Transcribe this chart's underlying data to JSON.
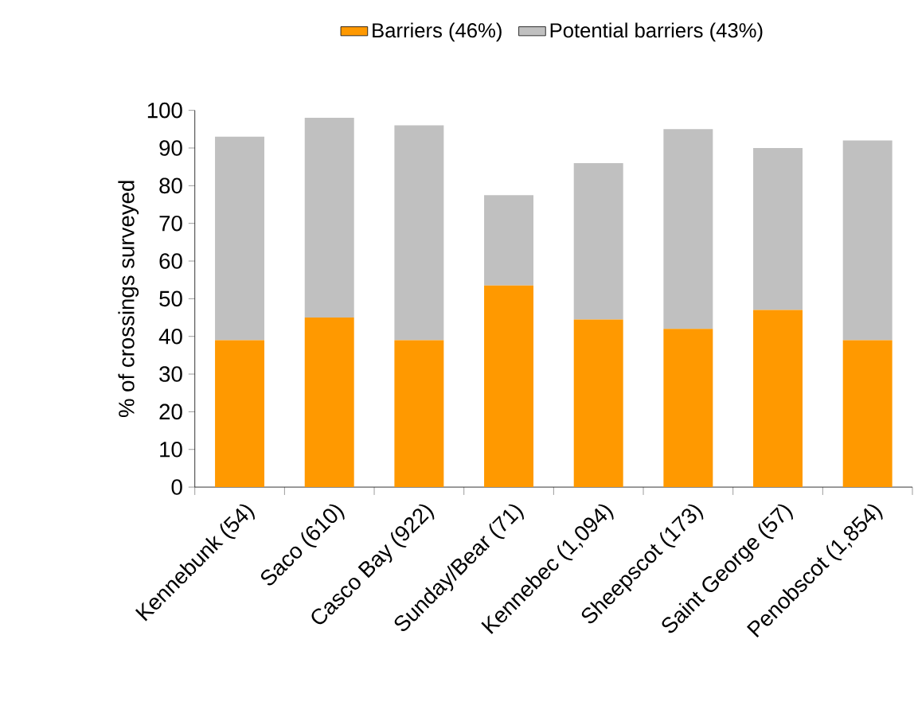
{
  "chart_data": {
    "type": "bar",
    "stacked": true,
    "ylabel": "% of crossings surveyed",
    "categories": [
      "Kennebunk (54)",
      "Saco (610)",
      "Casco Bay (922)",
      "Sunday/Bear (71)",
      "Kennebec (1,094)",
      "Sheepscot (173)",
      "Saint George (57)",
      "Penobscot (1,854)"
    ],
    "series": [
      {
        "name": "Barriers (46%)",
        "color": "#ff9900",
        "values": [
          39,
          45,
          39,
          53.5,
          44.5,
          42,
          47,
          39
        ]
      },
      {
        "name": "Potential barriers (43%)",
        "color": "#c0c0c0",
        "values": [
          54,
          53,
          57,
          24,
          41.5,
          53,
          43,
          53
        ]
      }
    ],
    "ylim": [
      0,
      100
    ],
    "yticks": [
      0,
      10,
      20,
      30,
      40,
      50,
      60,
      70,
      80,
      90,
      100
    ],
    "grid": false,
    "legend": "top"
  }
}
